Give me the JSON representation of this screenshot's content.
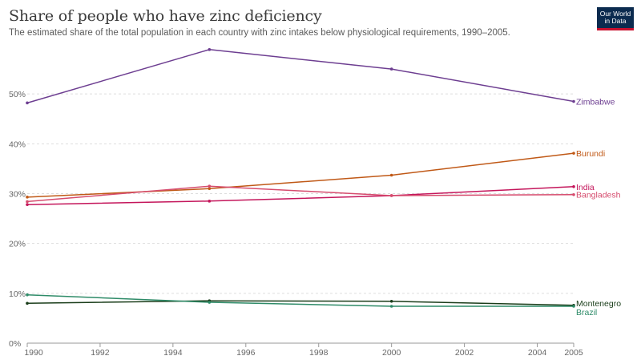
{
  "header": {
    "title": "Share of people who have zinc deficiency",
    "subtitle": "The estimated share of the total population in each country with zinc intakes below physiological requirements, 1990–2005.",
    "logo_line1": "Our World",
    "logo_line2": "in Data"
  },
  "chart_data": {
    "type": "line",
    "title": "Share of people who have zinc deficiency",
    "subtitle": "The estimated share of the total population in each country with zinc intakes below physiological requirements, 1990–2005.",
    "xlabel": "",
    "ylabel": "",
    "xlim": [
      1990,
      2005
    ],
    "ylim": [
      0,
      60
    ],
    "x_ticks": [
      1990,
      1992,
      1994,
      1996,
      1998,
      2000,
      2002,
      2004,
      2005
    ],
    "y_ticks": [
      0,
      10,
      20,
      30,
      40,
      50
    ],
    "y_tick_labels": [
      "0%",
      "10%",
      "20%",
      "30%",
      "40%",
      "50%"
    ],
    "grid": "horizontal dashed",
    "legend": "labels at line ends (right)",
    "series": [
      {
        "name": "Zimbabwe",
        "color": "#6d3e91",
        "x": [
          1990,
          1995,
          2000,
          2005
        ],
        "values": [
          48.2,
          58.9,
          55.0,
          48.5
        ]
      },
      {
        "name": "Burundi",
        "color": "#c05917",
        "x": [
          1990,
          1995,
          2000,
          2005
        ],
        "values": [
          29.3,
          31.0,
          33.7,
          38.1
        ]
      },
      {
        "name": "India",
        "color": "#c4165b",
        "x": [
          1990,
          1995,
          2000,
          2005
        ],
        "values": [
          27.8,
          28.5,
          29.6,
          31.4
        ]
      },
      {
        "name": "Bangladesh",
        "color": "#d64c6e",
        "x": [
          1990,
          1995,
          2000,
          2005
        ],
        "values": [
          28.4,
          31.5,
          29.6,
          29.8
        ]
      },
      {
        "name": "Montenegro",
        "color": "#1a3d1a",
        "x": [
          1990,
          1995,
          2000,
          2005
        ],
        "values": [
          8.0,
          8.5,
          8.4,
          7.6
        ]
      },
      {
        "name": "Brazil",
        "color": "#2e8b68",
        "x": [
          1990,
          1995,
          2000,
          2005
        ],
        "values": [
          9.7,
          8.2,
          7.4,
          7.4
        ]
      }
    ]
  }
}
